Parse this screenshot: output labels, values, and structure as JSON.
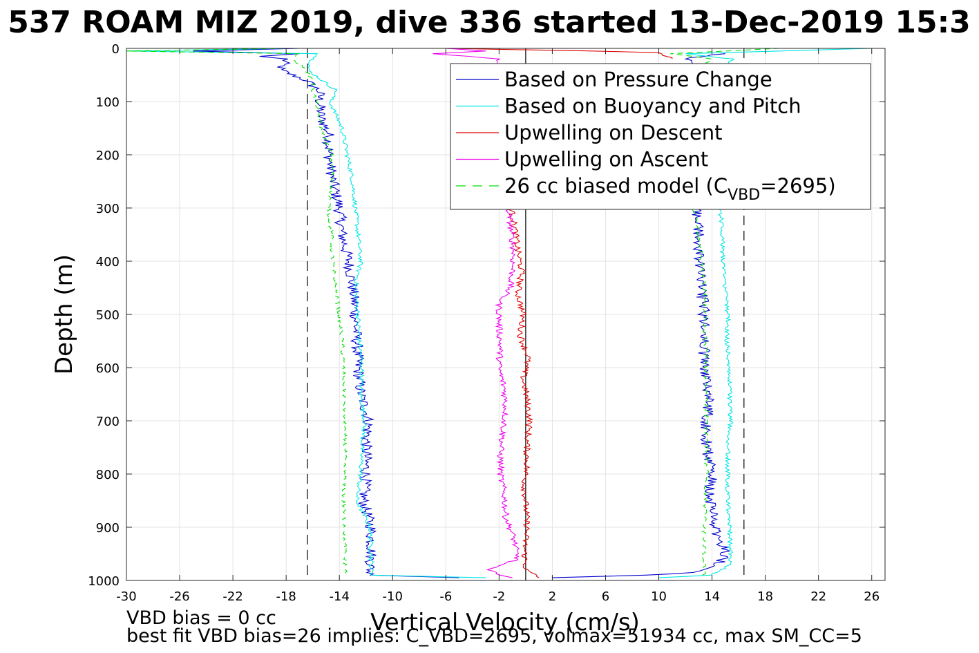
{
  "chart_data": {
    "type": "line",
    "title": "537 ROAM MIZ 2019, dive 336 started 13-Dec-2019 15:3",
    "xlabel": "Vertical Velocity (cm/s)",
    "ylabel": "Depth (m)",
    "xlim": [
      -30,
      27
    ],
    "ylim": [
      0,
      1000
    ],
    "y_reversed": true,
    "grid": true,
    "legend_position": "top-right",
    "xticks": [
      -30,
      -26,
      -22,
      -18,
      -14,
      -10,
      -6,
      -2,
      2,
      6,
      10,
      14,
      18,
      22,
      26
    ],
    "yticks": [
      0,
      100,
      200,
      300,
      400,
      500,
      600,
      700,
      800,
      900,
      1000
    ],
    "reference_lines": [
      {
        "x": -16.4,
        "style": "dashed",
        "color": "#000000"
      },
      {
        "x": 0,
        "style": "solid",
        "color": "#000000"
      },
      {
        "x": 16.4,
        "style": "dashed",
        "color": "#000000"
      }
    ],
    "series": [
      {
        "name": "Based on Pressure Change",
        "color": "#0000cc",
        "segments": [
          {
            "depth": [
              0,
              5,
              10,
              15,
              20,
              40,
              60,
              80,
              100,
              130,
              160,
              200,
              250,
              300,
              350,
              400,
              450,
              500,
              550,
              600,
              650,
              700,
              750,
              800,
              850,
              900,
              950,
              990,
              995
            ],
            "velocity": [
              -17,
              -25,
              -17,
              -20,
              -18,
              -18.5,
              -16.5,
              -15.5,
              -15.5,
              -15.4,
              -14.8,
              -14.8,
              -14.5,
              -14,
              -13.8,
              -13.3,
              -13,
              -12.8,
              -12.7,
              -12.6,
              -12.4,
              -11.8,
              -12,
              -12,
              -12.2,
              -11.6,
              -11.6,
              -11.7,
              -5
            ]
          },
          {
            "depth": [
              995,
              990,
              985,
              970,
              950,
              900,
              850,
              800,
              750,
              700,
              650,
              600,
              550,
              500,
              450,
              400,
              350,
              300,
              280,
              40,
              20,
              10
            ],
            "velocity": [
              2,
              9,
              13,
              14.5,
              15,
              14.2,
              13.8,
              14,
              13.6,
              13.6,
              13.8,
              13.4,
              13.4,
              13.4,
              13.2,
              13,
              13,
              12.8,
              13,
              13,
              12,
              15
            ]
          }
        ]
      },
      {
        "name": "Based on Buoyancy and Pitch",
        "color": "#00e5e5",
        "segments": [
          {
            "depth": [
              0,
              5,
              10,
              20,
              40,
              60,
              80,
              100,
              150,
              200,
              250,
              300,
              350,
              400,
              450,
              500,
              550,
              600,
              650,
              700,
              750,
              800,
              850,
              900,
              950,
              990,
              995
            ],
            "velocity": [
              -18,
              -30,
              -15.5,
              -16,
              -16.4,
              -15.3,
              -14.2,
              -14.7,
              -13.8,
              -13.4,
              -13,
              -12.8,
              -12.6,
              -12.4,
              -12.8,
              -12.6,
              -12.5,
              -12.3,
              -12.4,
              -12.1,
              -12.3,
              -12.4,
              -12.7,
              -11.7,
              -11.6,
              -11.6,
              -3
            ]
          },
          {
            "depth": [
              995,
              990,
              970,
              950,
              900,
              850,
              800,
              750,
              700,
              650,
              600,
              550,
              500,
              450,
              400,
              350,
              300,
              280,
              40,
              20,
              10,
              0
            ],
            "velocity": [
              10,
              14,
              15.4,
              15.4,
              15.3,
              15.2,
              15.2,
              15.2,
              15.4,
              15.3,
              15.3,
              15.1,
              15.2,
              15,
              14.8,
              14.8,
              14.6,
              14.6,
              15,
              15.5,
              12,
              26
            ]
          }
        ]
      },
      {
        "name": "Upwelling on Descent",
        "color": "#dd0000",
        "segments": [
          {
            "depth": [
              300,
              340,
              380,
              420,
              460,
              500,
              540,
              580,
              620,
              660,
              700,
              740,
              780,
              820,
              860,
              900,
              940,
              980,
              995
            ],
            "velocity": [
              -1.1,
              -0.8,
              -0.6,
              -0.3,
              -0.6,
              -0.2,
              -0.4,
              0.2,
              -0.2,
              0.1,
              0.3,
              0.1,
              0.1,
              -0.1,
              0,
              0.1,
              -0.1,
              0,
              1
            ]
          },
          {
            "depth": [
              0,
              5,
              8,
              20
            ],
            "velocity": [
              -6,
              5,
              10,
              11
            ]
          }
        ]
      },
      {
        "name": "Upwelling on Ascent",
        "color": "#ee00ee",
        "segments": [
          {
            "depth": [
              300,
              340,
              380,
              420,
              450,
              480,
              520,
              560,
              600,
              640,
              680,
              720,
              760,
              800,
              840,
              880,
              920,
              960,
              980,
              995
            ],
            "velocity": [
              -1.3,
              -1.1,
              -0.9,
              -1,
              -1.2,
              -2,
              -2,
              -1.9,
              -2,
              -1.6,
              -1.5,
              -1.7,
              -1.9,
              -1.9,
              -1.6,
              -1.5,
              -0.9,
              -0.6,
              -3,
              -1
            ]
          },
          {
            "depth": [
              0,
              5,
              10,
              20,
              40
            ],
            "velocity": [
              -6,
              -3,
              -7,
              -2,
              -2
            ]
          }
        ]
      },
      {
        "name": "26 cc biased model (C",
        "name_subscript": "VBD",
        "name_suffix": "=2695)",
        "color": "#00dd00",
        "dashed": true,
        "segments": [
          {
            "depth": [
              0,
              5,
              10,
              20,
              40,
              60,
              80,
              100,
              150,
              200,
              250,
              300,
              350,
              400,
              450,
              500,
              550,
              600,
              650,
              700,
              750,
              800,
              850,
              900,
              950,
              990
            ],
            "velocity": [
              -18,
              -30,
              -17,
              -17.5,
              -16.5,
              -16,
              -16,
              -15.7,
              -15.4,
              -14.6,
              -14.5,
              -14.8,
              -14.6,
              -14.5,
              -14.3,
              -14,
              -13.8,
              -13.7,
              -13.6,
              -13.6,
              -13.6,
              -13.6,
              -13.7,
              -13.6,
              -13.6,
              -13.5
            ]
          },
          {
            "depth": [
              990,
              950,
              900,
              850,
              800,
              750,
              700,
              650,
              600,
              550,
              500,
              450,
              400,
              350,
              300,
              40,
              20,
              10,
              0
            ],
            "velocity": [
              13.4,
              13.4,
              13.4,
              13.5,
              13.6,
              13.6,
              13.6,
              13.6,
              13.5,
              13.5,
              13.4,
              13.4,
              13.2,
              13,
              12.6,
              13,
              14,
              11,
              19
            ]
          }
        ]
      }
    ]
  },
  "notes": {
    "vbd_bias": "VBD bias = 0 cc",
    "best_fit": "best fit VBD bias=26 implies: C_VBD=2695, volmax=51934 cc, max SM_CC=5"
  }
}
